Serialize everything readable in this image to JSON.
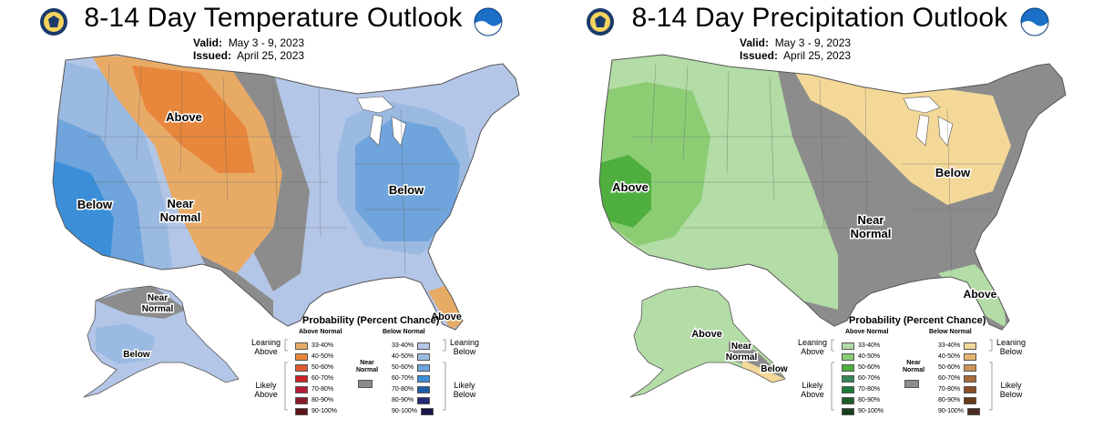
{
  "temperature": {
    "title": "8-14 Day Temperature Outlook",
    "valid_label": "Valid:",
    "valid_value": "May 3 - 9, 2023",
    "issued_label": "Issued:",
    "issued_value": "April 25, 2023",
    "map_labels": {
      "above": "Above",
      "below_west": "Below",
      "near_line1": "Near",
      "near_line2": "Normal",
      "below_east": "Below",
      "alaska_near_line1": "Near",
      "alaska_near_line2": "Normal",
      "alaska_below": "Below",
      "florida_above": "Above"
    },
    "legend": {
      "title": "Probability (Percent Chance)",
      "left_header": "Above Normal",
      "right_header": "Below Normal",
      "left_group_1": [
        "Leaning",
        "Above"
      ],
      "left_group_2": [
        "Likely",
        "Above"
      ],
      "right_group_1": [
        "Leaning",
        "Below"
      ],
      "right_group_2": [
        "Likely",
        "Below"
      ],
      "near": [
        "Near",
        "Normal"
      ],
      "left_items": [
        {
          "label": "33-40%",
          "color": "#e8ab66"
        },
        {
          "label": "40-50%",
          "color": "#e8863b"
        },
        {
          "label": "50-60%",
          "color": "#dc5a32"
        },
        {
          "label": "60-70%",
          "color": "#cc2229"
        },
        {
          "label": "70-80%",
          "color": "#b71c35"
        },
        {
          "label": "80-90%",
          "color": "#8b1a2a"
        },
        {
          "label": "90-100%",
          "color": "#5c1414"
        }
      ],
      "right_items": [
        {
          "label": "33-40%",
          "color": "#b4c6e7"
        },
        {
          "label": "40-50%",
          "color": "#9bbae2"
        },
        {
          "label": "50-60%",
          "color": "#6fa4dc"
        },
        {
          "label": "60-70%",
          "color": "#3b8fd8"
        },
        {
          "label": "70-80%",
          "color": "#1c5ea8"
        },
        {
          "label": "80-90%",
          "color": "#232878"
        },
        {
          "label": "90-100%",
          "color": "#1a1548"
        }
      ]
    }
  },
  "precipitation": {
    "title": "8-14 Day Precipitation Outlook",
    "valid_label": "Valid:",
    "valid_value": "May 3 - 9, 2023",
    "issued_label": "Issued:",
    "issued_value": "April 25, 2023",
    "map_labels": {
      "above_west": "Above",
      "near_line1": "Near",
      "near_line2": "Normal",
      "below_north": "Below",
      "florida_above": "Above",
      "alaska_above": "Above",
      "alaska_near_line1": "Near",
      "alaska_near_line2": "Normal",
      "alaska_below": "Below"
    },
    "legend": {
      "title": "Probability (Percent Chance)",
      "left_header": "Above Normal",
      "right_header": "Below Normal",
      "left_group_1": [
        "Leaning",
        "Above"
      ],
      "left_group_2": [
        "Likely",
        "Above"
      ],
      "right_group_1": [
        "Leaning",
        "Below"
      ],
      "right_group_2": [
        "Likely",
        "Below"
      ],
      "near": [
        "Near",
        "Normal"
      ],
      "left_items": [
        {
          "label": "33-40%",
          "color": "#b3dca6"
        },
        {
          "label": "40-50%",
          "color": "#8ccd74"
        },
        {
          "label": "50-60%",
          "color": "#4eaf3f"
        },
        {
          "label": "60-70%",
          "color": "#38855a"
        },
        {
          "label": "70-80%",
          "color": "#1f7a3a"
        },
        {
          "label": "80-90%",
          "color": "#1b5e2a"
        },
        {
          "label": "90-100%",
          "color": "#173f1a"
        }
      ],
      "right_items": [
        {
          "label": "33-40%",
          "color": "#f3d898"
        },
        {
          "label": "40-50%",
          "color": "#e6b66f"
        },
        {
          "label": "50-60%",
          "color": "#c99455"
        },
        {
          "label": "60-70%",
          "color": "#a86c3c"
        },
        {
          "label": "70-80%",
          "color": "#8b4e27"
        },
        {
          "label": "80-90%",
          "color": "#6a3a1c"
        },
        {
          "label": "90-100%",
          "color": "#4a2d20"
        }
      ]
    }
  }
}
